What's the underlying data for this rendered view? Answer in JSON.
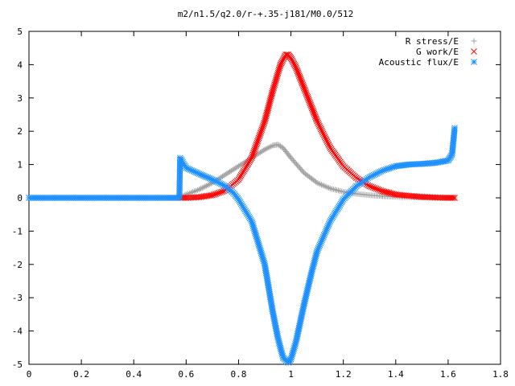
{
  "chart_data": {
    "type": "scatter",
    "title": "m2/n1.5/q2.0/r-+.35-j181/M0.0/512",
    "xlabel": "",
    "ylabel": "",
    "xlim": [
      0,
      1.8
    ],
    "ylim": [
      -5,
      5
    ],
    "xticks": [
      0,
      0.2,
      0.4,
      0.6,
      0.8,
      1,
      1.2,
      1.4,
      1.6,
      1.8
    ],
    "yticks": [
      -5,
      -4,
      -3,
      -2,
      -1,
      0,
      1,
      2,
      3,
      4,
      5
    ],
    "grid": false,
    "legend_position": "top-right",
    "series": [
      {
        "name": "R stress/E",
        "marker": "plus",
        "color": "#a0a0a0",
        "x": [
          0,
          0.1,
          0.2,
          0.3,
          0.4,
          0.5,
          0.575,
          0.6,
          0.65,
          0.7,
          0.75,
          0.8,
          0.85,
          0.9,
          0.93,
          0.95,
          0.97,
          1.0,
          1.05,
          1.1,
          1.15,
          1.2,
          1.25,
          1.3,
          1.35,
          1.4,
          1.5,
          1.6,
          1.625
        ],
        "y": [
          0,
          0,
          0,
          0,
          0,
          0,
          0.0,
          0.1,
          0.25,
          0.45,
          0.7,
          0.95,
          1.2,
          1.45,
          1.57,
          1.6,
          1.5,
          1.2,
          0.75,
          0.45,
          0.28,
          0.18,
          0.12,
          0.08,
          0.05,
          0.03,
          0.01,
          0.0,
          0.0
        ]
      },
      {
        "name": "G work/E",
        "marker": "cross",
        "color": "#ff0000",
        "x": [
          0.575,
          0.6,
          0.65,
          0.7,
          0.75,
          0.8,
          0.85,
          0.9,
          0.93,
          0.96,
          0.98,
          0.99,
          1.0,
          1.02,
          1.05,
          1.08,
          1.1,
          1.15,
          1.2,
          1.25,
          1.3,
          1.35,
          1.4,
          1.45,
          1.5,
          1.55,
          1.6,
          1.625
        ],
        "y": [
          0.0,
          0.0,
          0.02,
          0.08,
          0.22,
          0.55,
          1.2,
          2.3,
          3.2,
          4.0,
          4.3,
          4.3,
          4.2,
          3.9,
          3.3,
          2.7,
          2.3,
          1.5,
          0.95,
          0.6,
          0.35,
          0.2,
          0.1,
          0.06,
          0.03,
          0.01,
          0.0,
          0.0
        ]
      },
      {
        "name": "Acoustic flux/E",
        "marker": "star",
        "color": "#1e90ff",
        "x": [
          0,
          0.1,
          0.2,
          0.3,
          0.4,
          0.5,
          0.574,
          0.577,
          0.6,
          0.65,
          0.7,
          0.75,
          0.78,
          0.8,
          0.85,
          0.9,
          0.93,
          0.95,
          0.97,
          0.99,
          1.0,
          1.02,
          1.05,
          1.08,
          1.1,
          1.15,
          1.2,
          1.25,
          1.3,
          1.35,
          1.4,
          1.45,
          1.5,
          1.55,
          1.6,
          1.615,
          1.62,
          1.625
        ],
        "y": [
          0,
          0,
          0,
          0,
          0,
          0,
          0,
          1.2,
          0.9,
          0.72,
          0.55,
          0.35,
          0.15,
          -0.05,
          -0.7,
          -2.0,
          -3.4,
          -4.2,
          -4.8,
          -4.95,
          -4.85,
          -4.3,
          -3.2,
          -2.2,
          -1.6,
          -0.7,
          -0.05,
          0.35,
          0.62,
          0.82,
          0.95,
          1.0,
          1.02,
          1.05,
          1.12,
          1.3,
          1.7,
          2.1
        ]
      }
    ]
  }
}
